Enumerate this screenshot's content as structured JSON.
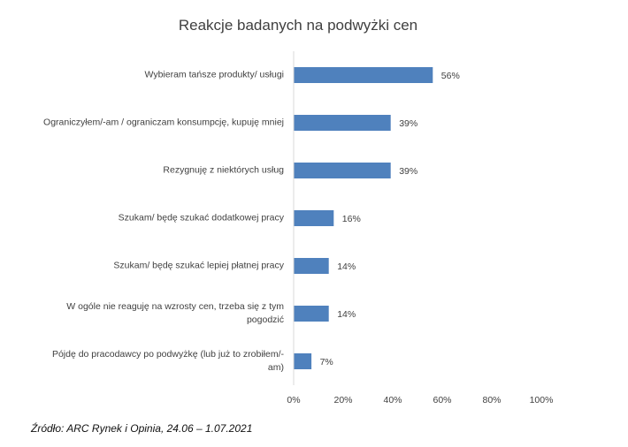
{
  "chart_data": {
    "type": "bar",
    "orientation": "horizontal",
    "title": "Reakcje badanych na podwyżki cen",
    "categories": [
      "Wybieram tańsze produkty/ usługi",
      "Ograniczyłem/-am / ograniczam konsumpcję, kupuję mniej",
      "Rezygnuję z niektórych usług",
      "Szukam/ będę szukać dodatkowej pracy",
      "Szukam/ będę szukać lepiej płatnej pracy",
      "W ogóle nie reaguję na wzrosty cen, trzeba się z tym pogodzić",
      "Pójdę do pracodawcy po podwyżkę (lub już to zrobiłem/-am)"
    ],
    "values": [
      56,
      39,
      39,
      16,
      14,
      14,
      7
    ],
    "data_labels": [
      "56%",
      "39%",
      "39%",
      "16%",
      "14%",
      "14%",
      "7%"
    ],
    "xlim": [
      0,
      100
    ],
    "x_ticks": [
      "0%",
      "20%",
      "40%",
      "60%",
      "80%",
      "100%"
    ],
    "grid": false,
    "bar_color": "#4F81BD"
  },
  "source": "Źródło: ARC Rynek i Opinia, 24.06 – 1.07.2021"
}
